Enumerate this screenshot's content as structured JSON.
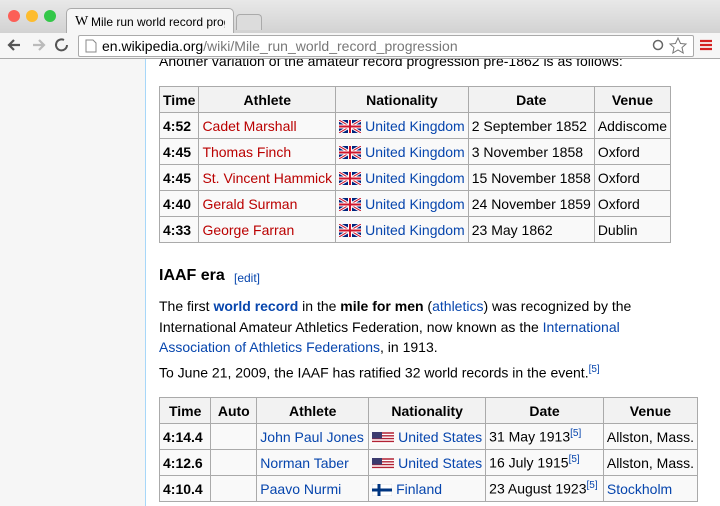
{
  "browser": {
    "tab_title": "Mile run world record progression",
    "url_host": "en.wikipedia.org",
    "url_path": "/wiki/Mile_run_world_record_progression"
  },
  "intro": "Another variation of the amateur record progression pre-1862 is as follows:",
  "table1": {
    "headers": [
      "Time",
      "Athlete",
      "Nationality",
      "Date",
      "Venue"
    ],
    "rows": [
      {
        "time": "4:52",
        "athlete": "Cadet Marshall",
        "nationality": "United Kingdom",
        "date": "2 September 1852",
        "venue": "Addiscome"
      },
      {
        "time": "4:45",
        "athlete": "Thomas Finch",
        "nationality": "United Kingdom",
        "date": "3 November 1858",
        "venue": "Oxford"
      },
      {
        "time": "4:45",
        "athlete": "St. Vincent Hammick",
        "nationality": "United Kingdom",
        "date": "15 November 1858",
        "venue": "Oxford"
      },
      {
        "time": "4:40",
        "athlete": "Gerald Surman",
        "nationality": "United Kingdom",
        "date": "24 November 1859",
        "venue": "Oxford"
      },
      {
        "time": "4:33",
        "athlete": "George Farran",
        "nationality": "United Kingdom",
        "date": "23 May 1862",
        "venue": "Dublin"
      }
    ]
  },
  "section": {
    "heading": "IAAF era",
    "edit": "[edit]"
  },
  "paragraph1": [
    "The first ",
    "world record",
    " in the ",
    "mile for men",
    " (",
    "athletics",
    ") was recognized by the International Amateur Athletics Federation, now known as the ",
    "International Association of Athletics Federations",
    ", in 1913."
  ],
  "paragraph2": {
    "text": "To June 21, 2009, the IAAF has ratified 32 world records in the event.",
    "ref": "[5]"
  },
  "table2": {
    "headers": [
      "Time",
      "Auto",
      "Athlete",
      "Nationality",
      "Date",
      "Venue"
    ],
    "rows": [
      {
        "time": "4:14.4",
        "athlete": "John Paul Jones",
        "nationality": "United States",
        "date": "31 May 1913",
        "ref": "[5]",
        "venue": "Allston, Mass."
      },
      {
        "time": "4:12.6",
        "athlete": "Norman Taber",
        "nationality": "United States",
        "date": "16 July 1915",
        "ref": "[5]",
        "venue": "Allston, Mass."
      },
      {
        "time": "4:10.4",
        "athlete": "Paavo Nurmi",
        "nationality": "Finland",
        "date": "23 August 1923",
        "ref": "[5]",
        "venue": "Stockholm"
      }
    ]
  }
}
